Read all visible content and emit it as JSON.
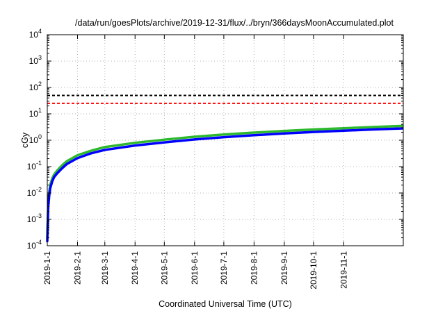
{
  "chart_data": {
    "type": "line",
    "title": "/data/run/goesPlots/archive/2019-12-31/flux/../bryn/366daysMoonAccumulated.plot",
    "xlabel": "Coordinated Universal Time (UTC)",
    "ylabel": "cGy",
    "yscale": "log",
    "ylim": [
      0.0001,
      10000
    ],
    "xlim": [
      "2019-01-01",
      "2019-12-31"
    ],
    "grid": true,
    "x_ticks": [
      "2019-1-1",
      "2019-2-1",
      "2019-3-1",
      "2019-4-1",
      "2019-5-1",
      "2019-6-1",
      "2019-7-1",
      "2019-8-1",
      "2019-9-1",
      "2019-10-1",
      "2019-11-1"
    ],
    "y_ticks": [
      {
        "base": "10",
        "exp": "-4"
      },
      {
        "base": "10",
        "exp": "-3"
      },
      {
        "base": "10",
        "exp": "-2"
      },
      {
        "base": "10",
        "exp": "-1"
      },
      {
        "base": "10",
        "exp": "0"
      },
      {
        "base": "10",
        "exp": "1"
      },
      {
        "base": "10",
        "exp": "2"
      },
      {
        "base": "10",
        "exp": "3"
      },
      {
        "base": "10",
        "exp": "4"
      }
    ],
    "reference_lines": [
      {
        "y": 50,
        "color": "#000000",
        "style": "dashed"
      },
      {
        "y": 25,
        "color": "#ff0000",
        "style": "dashed"
      }
    ],
    "series": [
      {
        "color": "#2db82d",
        "x": [
          "2019-01-01",
          "2019-01-02",
          "2019-01-03",
          "2019-01-04",
          "2019-01-06",
          "2019-01-08",
          "2019-01-11",
          "2019-01-16",
          "2019-01-21",
          "2019-02-01",
          "2019-02-15",
          "2019-03-01",
          "2019-04-01",
          "2019-05-01",
          "2019-06-01",
          "2019-07-01",
          "2019-08-01",
          "2019-09-01",
          "2019-10-01",
          "2019-11-01",
          "2019-12-01",
          "2019-12-31"
        ],
        "values": [
          0.0002,
          0.004,
          0.011,
          0.02,
          0.035,
          0.05,
          0.07,
          0.11,
          0.16,
          0.27,
          0.4,
          0.55,
          0.8,
          1.05,
          1.35,
          1.65,
          1.95,
          2.25,
          2.55,
          2.85,
          3.15,
          3.5
        ]
      },
      {
        "color": "#0000ff",
        "x": [
          "2019-01-01",
          "2019-01-02",
          "2019-01-03",
          "2019-01-04",
          "2019-01-06",
          "2019-01-08",
          "2019-01-11",
          "2019-01-16",
          "2019-01-21",
          "2019-02-01",
          "2019-02-15",
          "2019-03-01",
          "2019-04-01",
          "2019-05-01",
          "2019-06-01",
          "2019-07-01",
          "2019-08-01",
          "2019-09-01",
          "2019-10-01",
          "2019-11-01",
          "2019-12-01",
          "2019-12-31"
        ],
        "values": [
          0.00015,
          0.003,
          0.008,
          0.015,
          0.027,
          0.04,
          0.055,
          0.085,
          0.125,
          0.21,
          0.32,
          0.43,
          0.63,
          0.83,
          1.07,
          1.3,
          1.55,
          1.8,
          2.05,
          2.3,
          2.55,
          2.8
        ]
      }
    ]
  }
}
